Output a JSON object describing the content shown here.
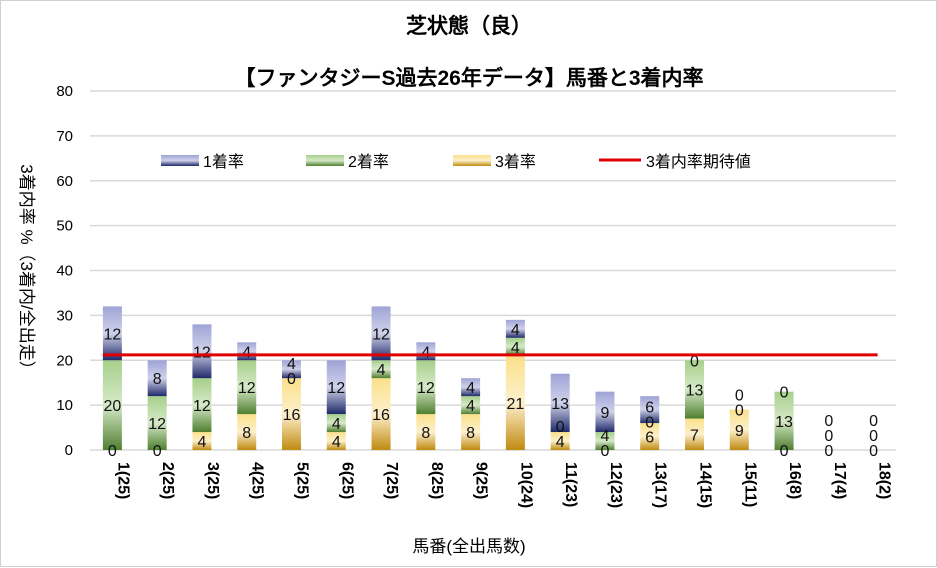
{
  "chart_data": {
    "type": "bar",
    "stacked": true,
    "title": "芝状態（良）",
    "subtitle": "【ファンタジーS過去26年データ】馬番と3着内率",
    "xlabel": "馬番(全出馬数)",
    "ylabel": "3着内率 %（3着内/全出走）",
    "ylim": [
      0,
      80
    ],
    "yticks": [
      0,
      10,
      20,
      30,
      40,
      50,
      60,
      70,
      80
    ],
    "grid": true,
    "legend_position": "top",
    "categories": [
      "1(25)",
      "2(25)",
      "3(25)",
      "4(25)",
      "5(25)",
      "6(25)",
      "7(25)",
      "8(25)",
      "9(25)",
      "10(24)",
      "11(23)",
      "12(23)",
      "13(17)",
      "14(15)",
      "15(11)",
      "16(8)",
      "17(4)",
      "18(2)"
    ],
    "series": [
      {
        "name": "3着率",
        "color": "#c8960c",
        "values": [
          0,
          0,
          4,
          8,
          16,
          4,
          16,
          8,
          8,
          21,
          4,
          0,
          6,
          7,
          9,
          0,
          0,
          0
        ]
      },
      {
        "name": "2着率",
        "color": "#5a8a3a",
        "values": [
          20,
          12,
          12,
          12,
          0,
          4,
          4,
          12,
          4,
          4,
          0,
          4,
          0,
          13,
          0,
          13,
          0,
          0
        ]
      },
      {
        "name": "1着率",
        "color": "#2e3a80",
        "values": [
          12,
          8,
          12,
          4,
          4,
          12,
          12,
          4,
          4,
          4,
          13,
          9,
          6,
          0,
          0,
          0,
          0,
          0
        ]
      }
    ],
    "reference_line": {
      "name": "3着内率期待値",
      "color": "#e00000",
      "value": 21.2
    }
  }
}
